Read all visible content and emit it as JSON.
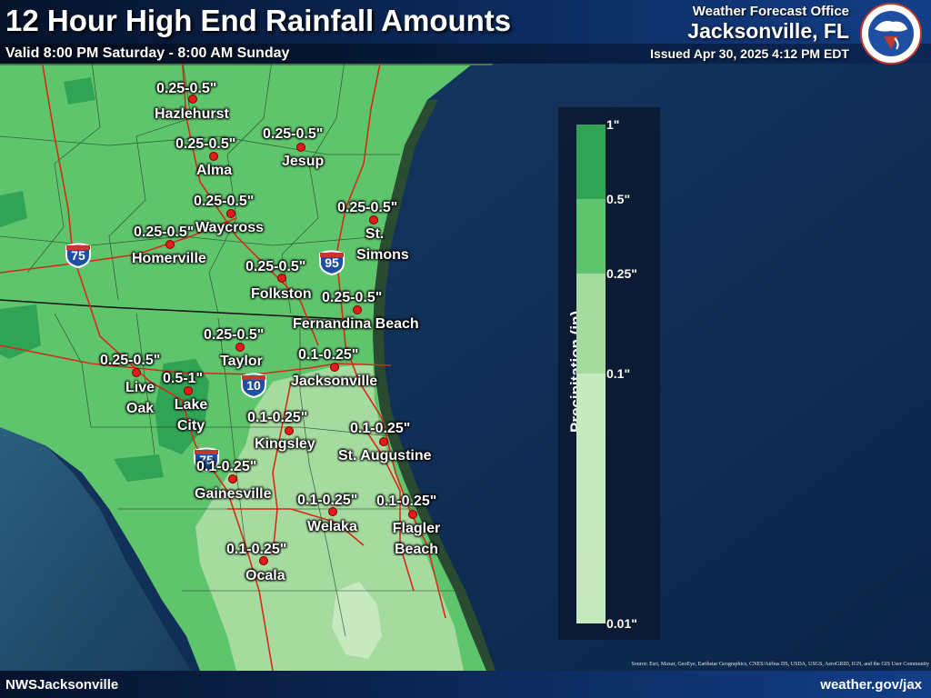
{
  "header": {
    "title": "12 Hour High End Rainfall Amounts",
    "subtitle": "Valid 8:00 PM Saturday - 8:00 AM Sunday",
    "office_label": "Weather Forecast Office",
    "office_city": "Jacksonville, FL",
    "issued": "Issued Apr 30, 2025 4:12 PM EDT",
    "logo": "national-weather-service-logo"
  },
  "footer": {
    "left": "NWSJacksonville",
    "right": "weather.gov/jax",
    "attribution": "Source: Esri, Maxar, GeoEye, Earthstar Geographics, CNES/Airbus DS, USDA, USGS, AeroGRID, IGN, and the GIS User Community"
  },
  "legend": {
    "title": "Precipitation (in)",
    "ticks": [
      "1\"",
      "0.5\"",
      "0.25\"",
      "0.1\"",
      "0.01\""
    ],
    "colors": [
      "#31a354",
      "#5fc56d",
      "#a6dba0",
      "#c7e9c0"
    ]
  },
  "highways": [
    "75",
    "95",
    "10",
    "75"
  ],
  "cities": [
    {
      "name": "Hazlehurst",
      "amount": "0.25-0.5\""
    },
    {
      "name": "Alma",
      "amount": "0.25-0.5\""
    },
    {
      "name": "Jesup",
      "amount": "0.25-0.5\""
    },
    {
      "name": "Waycross",
      "amount": "0.25-0.5\""
    },
    {
      "name": "St. Simons",
      "amount": "0.25-0.5\""
    },
    {
      "name": "Homerville",
      "amount": "0.25-0.5\""
    },
    {
      "name": "Folkston",
      "amount": "0.25-0.5\""
    },
    {
      "name": "Fernandina Beach",
      "amount": "0.25-0.5\""
    },
    {
      "name": "Taylor",
      "amount": "0.25-0.5\""
    },
    {
      "name": "Live Oak",
      "amount": "0.25-0.5\""
    },
    {
      "name": "Lake City",
      "amount": "0.5-1\""
    },
    {
      "name": "Jacksonville",
      "amount": "0.1-0.25\""
    },
    {
      "name": "Kingsley",
      "amount": "0.1-0.25\""
    },
    {
      "name": "St. Augustine",
      "amount": "0.1-0.25\""
    },
    {
      "name": "Gainesville",
      "amount": "0.1-0.25\""
    },
    {
      "name": "Welaka",
      "amount": "0.1-0.25\""
    },
    {
      "name": "Flagler Beach",
      "amount": "0.1-0.25\""
    },
    {
      "name": "Ocala",
      "amount": "0.1-0.25\""
    }
  ]
}
